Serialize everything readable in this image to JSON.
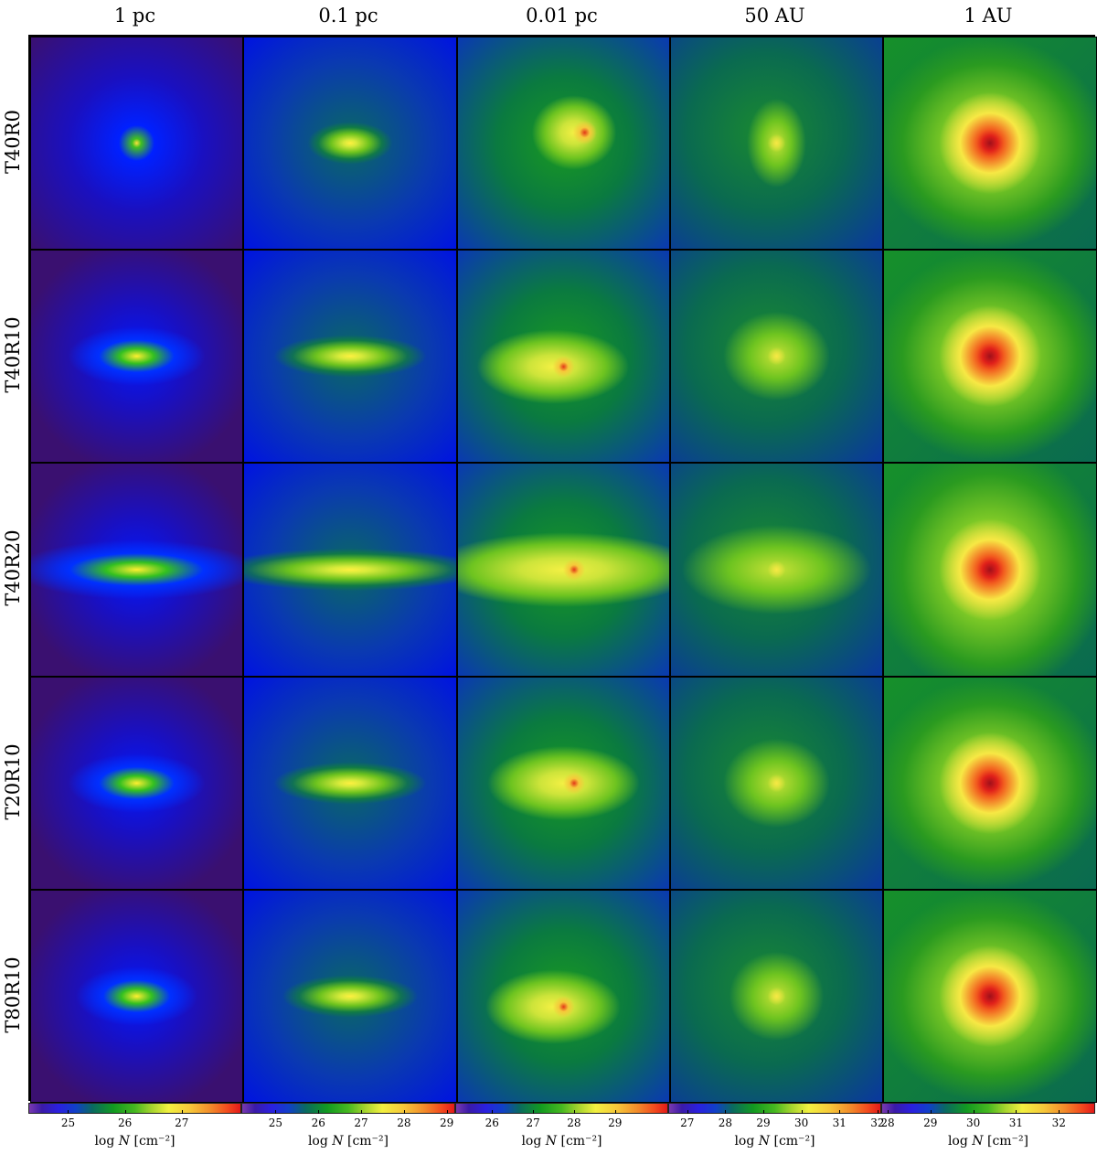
{
  "columns": [
    {
      "title": "1 pc",
      "cbar": {
        "ticks": [
          "25",
          "26",
          "27"
        ],
        "min": 24.3,
        "max": 28.05
      }
    },
    {
      "title": "0.1 pc",
      "cbar": {
        "ticks": [
          "25",
          "26",
          "27",
          "28",
          "29"
        ],
        "min": 24.2,
        "max": 29.2
      }
    },
    {
      "title": "0.01 pc",
      "cbar": {
        "ticks": [
          "26",
          "27",
          "28",
          "29"
        ],
        "min": 25.1,
        "max": 30.3
      }
    },
    {
      "title": "50 AU",
      "cbar": {
        "ticks": [
          "27",
          "28",
          "29",
          "30",
          "31",
          "32"
        ],
        "min": 26.5,
        "max": 32.1
      }
    },
    {
      "title": "1 AU",
      "cbar": {
        "ticks": [
          "28",
          "29",
          "30",
          "31",
          "32"
        ],
        "min": 27.85,
        "max": 32.85
      }
    }
  ],
  "rows": [
    {
      "label": "T40R0"
    },
    {
      "label": "T40R10"
    },
    {
      "label": "T40R20"
    },
    {
      "label": "T20R10"
    },
    {
      "label": "T80R10"
    }
  ],
  "axis_label": {
    "prefix": "log",
    "var": "N",
    "unit": "[cm⁻²]"
  },
  "colormap": [
    "#3a1060",
    "#2a10a0",
    "#0010ff",
    "#0a3ab0",
    "#0a7a2a",
    "#12a012",
    "#5ec21e",
    "#c8e236",
    "#f7f244",
    "#f6b83a",
    "#f24a1e",
    "#c41a1a"
  ]
}
